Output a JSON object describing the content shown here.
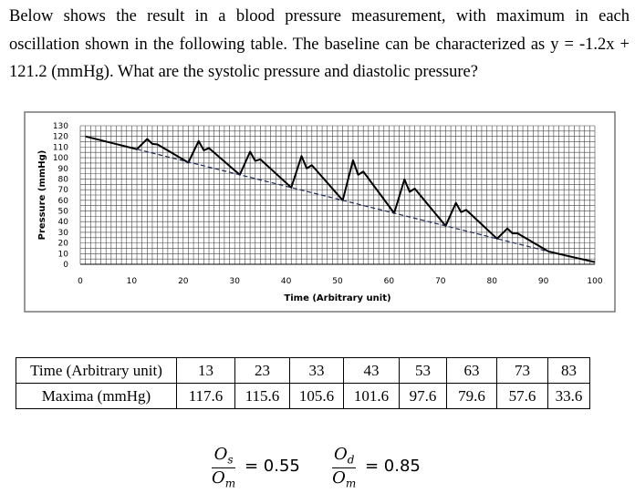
{
  "question": "Below shows the result in a blood pressure measurement, with maximum in each oscillation shown in the following table. The baseline can be characterized as y = -1.2x + 121.2 (mmHg). What are the systolic pressure and diastolic pressure?",
  "chart_data": {
    "type": "line",
    "xlabel": "Time (Arbitrary unit)",
    "ylabel": "Pressure (mmHg)",
    "xlim": [
      0,
      100
    ],
    "ylim": [
      0,
      130
    ],
    "xticks": [
      0,
      10,
      20,
      30,
      40,
      50,
      60,
      70,
      80,
      90,
      100
    ],
    "yticks": [
      0,
      10,
      20,
      30,
      40,
      50,
      60,
      70,
      80,
      90,
      100,
      110,
      120,
      130
    ],
    "grid": true,
    "series": [
      {
        "style": "solid",
        "color": "#000000",
        "points": [
          [
            1,
            120
          ],
          [
            11,
            108
          ],
          [
            13,
            117.6
          ],
          [
            14,
            113
          ],
          [
            15,
            112.5
          ],
          [
            21,
            95.5
          ],
          [
            23,
            115.6
          ],
          [
            24,
            107
          ],
          [
            25,
            109
          ],
          [
            31,
            84
          ],
          [
            33,
            105.6
          ],
          [
            34,
            97
          ],
          [
            35,
            98.5
          ],
          [
            41,
            72
          ],
          [
            43,
            101.6
          ],
          [
            44,
            90
          ],
          [
            45,
            93
          ],
          [
            51,
            60
          ],
          [
            53,
            97.6
          ],
          [
            54,
            84
          ],
          [
            55,
            87
          ],
          [
            61,
            48
          ],
          [
            63,
            79.6
          ],
          [
            64,
            68
          ],
          [
            65,
            71
          ],
          [
            71,
            36
          ],
          [
            73,
            57.6
          ],
          [
            74,
            49
          ],
          [
            75,
            51
          ],
          [
            81,
            24
          ],
          [
            83,
            33.6
          ],
          [
            84,
            29
          ],
          [
            85,
            29
          ],
          [
            91,
            12
          ],
          [
            100,
            2
          ]
        ]
      },
      {
        "style": "dashed",
        "color": "#1f2a5a",
        "points": [
          [
            11,
            108
          ],
          [
            91,
            12
          ]
        ]
      }
    ]
  },
  "table": {
    "row_headers": [
      "Time (Arbitrary unit)",
      "Maxima (mmHg)"
    ],
    "time": [
      "13",
      "23",
      "33",
      "43",
      "53",
      "63",
      "73",
      "83"
    ],
    "maxima": [
      "117.6",
      "115.6",
      "105.6",
      "101.6",
      "97.6",
      "79.6",
      "57.6",
      "33.6"
    ]
  },
  "ratios": [
    {
      "num": "O",
      "num_sub": "s",
      "den": "O",
      "den_sub": "m",
      "value": "= 0.55"
    },
    {
      "num": "O",
      "num_sub": "d",
      "den": "O",
      "den_sub": "m",
      "value": "= 0.85"
    }
  ]
}
